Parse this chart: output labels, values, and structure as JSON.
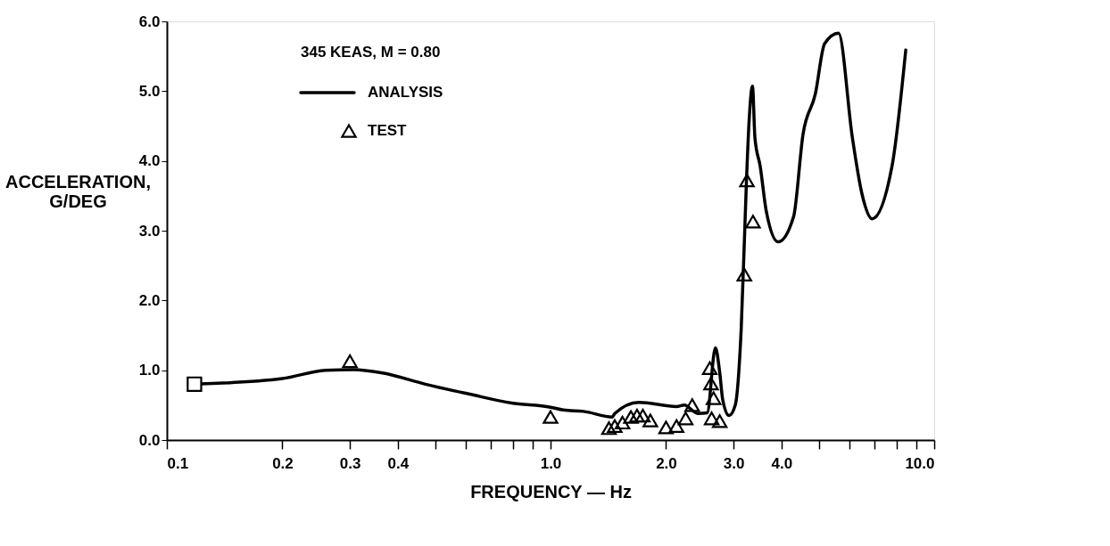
{
  "chart_data": {
    "type": "line",
    "xlabel": "FREQUENCY — Hz",
    "ylabel": "ACCELERATION,\nG/DEG",
    "legend_title": "345 KEAS, M = 0.80",
    "log": "x",
    "grid": false,
    "legend": "top left",
    "xlim": [
      0.1,
      10
    ],
    "ylim": [
      0,
      6
    ],
    "xticks": [
      {
        "value": 0.1,
        "label": "0.1"
      },
      {
        "value": 0.2,
        "label": "0.2"
      },
      {
        "value": 0.3,
        "label": "0.3"
      },
      {
        "value": 0.4,
        "label": "0.4"
      },
      {
        "value": 0.5,
        "label": null
      },
      {
        "value": 0.6,
        "label": null
      },
      {
        "value": 0.7,
        "label": null
      },
      {
        "value": 0.8,
        "label": null
      },
      {
        "value": 0.9,
        "label": null
      },
      {
        "value": 1,
        "label": "1.0"
      },
      {
        "value": 2,
        "label": "2.0"
      },
      {
        "value": 3,
        "label": "3.0"
      },
      {
        "value": 4,
        "label": "4.0"
      },
      {
        "value": 5,
        "label": null
      },
      {
        "value": 6,
        "label": null
      },
      {
        "value": 7,
        "label": null
      },
      {
        "value": 8,
        "label": null
      },
      {
        "value": 9,
        "label": null
      },
      {
        "value": 10,
        "label": "10.0"
      }
    ],
    "yticks": [
      {
        "value": 0,
        "label": "0.0"
      },
      {
        "value": 1,
        "label": "1.0"
      },
      {
        "value": 2,
        "label": "2.0"
      },
      {
        "value": 3,
        "label": "3.0"
      },
      {
        "value": 4,
        "label": "4.0"
      },
      {
        "value": 5,
        "label": "5.0"
      },
      {
        "value": 6,
        "label": "6.0"
      }
    ],
    "series": [
      {
        "name": "ANALYSIS",
        "type": "line",
        "color": "#000000",
        "marker": "none",
        "line_style": "solid",
        "x": [
          0.118,
          0.2,
          0.259,
          0.307,
          0.365,
          0.472,
          0.612,
          0.792,
          1.0,
          1.08,
          1.22,
          1.45,
          1.47,
          1.7,
          2.13,
          2.23,
          2.42,
          2.56,
          2.69,
          2.76,
          2.81,
          2.92,
          3.03,
          3.14,
          3.24,
          3.29,
          3.36,
          3.41,
          3.52,
          3.65,
          3.92,
          4.3,
          4.55,
          4.9,
          5.18,
          5.63,
          6.12,
          6.48,
          6.89,
          7.76,
          8.43
        ],
        "values": [
          0.8,
          0.88,
          1.0,
          1.01,
          0.96,
          0.8,
          0.66,
          0.53,
          0.47,
          0.43,
          0.41,
          0.33,
          0.38,
          0.54,
          0.48,
          0.5,
          0.38,
          0.39,
          1.32,
          0.97,
          0.58,
          0.35,
          0.5,
          1.59,
          3.7,
          4.54,
          5.07,
          4.33,
          3.92,
          3.28,
          2.84,
          3.2,
          4.38,
          4.96,
          5.68,
          5.83,
          4.33,
          3.53,
          3.17,
          3.92,
          5.59
        ]
      },
      {
        "name": "TEST",
        "type": "scatter",
        "color": "#000000",
        "marker": "triangle",
        "x": [
          0.3,
          1.0,
          1.42,
          1.47,
          1.54,
          1.62,
          1.68,
          1.74,
          1.82,
          2.0,
          2.13,
          2.25,
          2.34,
          2.6,
          2.62,
          2.66,
          2.63,
          2.76,
          3.2,
          3.25,
          3.37
        ],
        "values": [
          1.13,
          0.33,
          0.17,
          0.2,
          0.25,
          0.33,
          0.35,
          0.35,
          0.28,
          0.18,
          0.2,
          0.31,
          0.5,
          1.03,
          0.81,
          0.6,
          0.31,
          0.27,
          2.37,
          3.72,
          3.13
        ]
      },
      {
        "type": "scatter",
        "color": "#000000",
        "marker": "square",
        "x": [
          0.118
        ],
        "values": [
          0.8
        ]
      }
    ]
  }
}
